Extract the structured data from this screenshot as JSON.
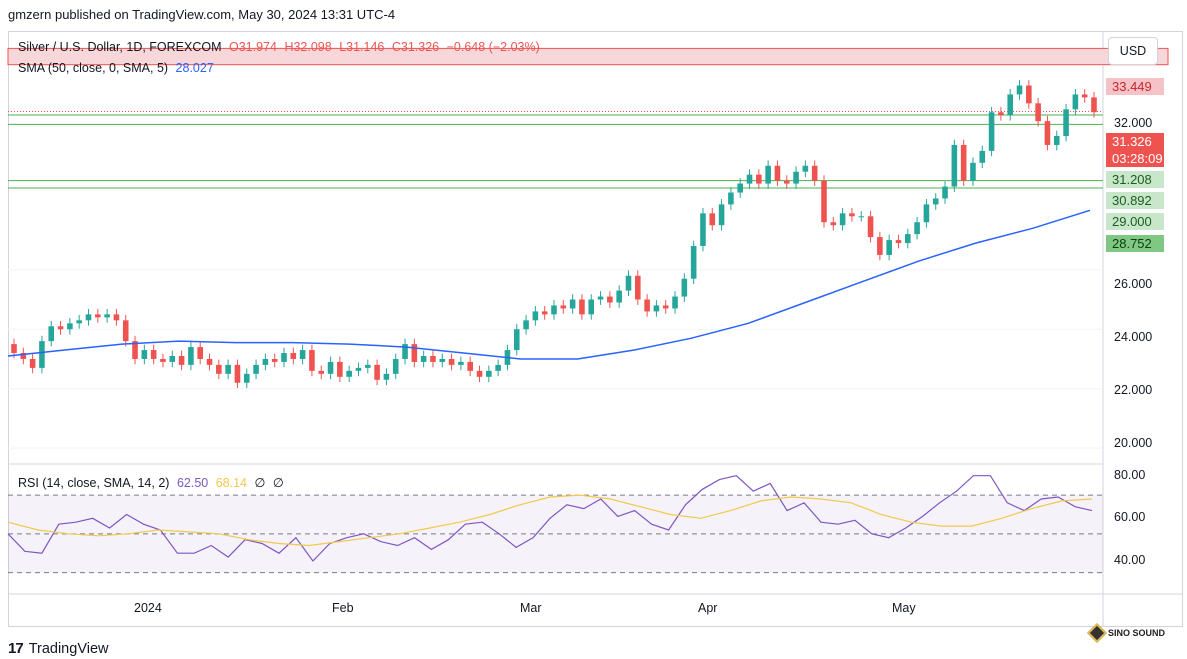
{
  "publisher": "gmzern published on TradingView.com, May 30, 2024 13:31 UTC-4",
  "legend": {
    "symbol": "Silver / U.S. Dollar, 1D, FOREXCOM",
    "open": "O31.974",
    "high": "H32.098",
    "low": "L31.146",
    "close": "C31.326",
    "change": "−0.648 (−2.03%)",
    "sma_label": "SMA (50, close, 0, SMA, 5)",
    "sma_value": "28.027",
    "rsi_label": "RSI (14, close, SMA, 14, 2)",
    "rsi_value": "62.50",
    "rsi_sma_value": "68.14",
    "rsi_extra1": "∅",
    "rsi_extra2": "∅"
  },
  "currency_button": "USD",
  "price_tags": {
    "resistance": "33.449",
    "last_price": "31.326",
    "countdown": "03:28:09",
    "support1": "31.208",
    "support2": "30.892",
    "tick_29": "29.000",
    "support3": "28.752"
  },
  "price_axis_labels": [
    "32.000",
    "26.000",
    "24.000",
    "22.000",
    "20.000"
  ],
  "rsi_axis_labels": [
    "80.00",
    "60.00",
    "40.00"
  ],
  "time_axis_labels": [
    "2024",
    "Feb",
    "Mar",
    "Apr",
    "May"
  ],
  "footer": {
    "logo_text": "TradingView",
    "watermark": "SINO SOUND"
  },
  "colors": {
    "up": "#26a69a",
    "down": "#ef5350",
    "sma": "#2962ff",
    "rsi": "#7e57c2",
    "rsi_sma": "#f2c94c",
    "resistance_zone": "#f8d7da",
    "support_line": "#4caf50"
  },
  "chart_data": {
    "type": "candlestick",
    "symbol": "XAGUSD",
    "timeframe": "1D",
    "ylim": [
      19.5,
      34.0
    ],
    "zones": {
      "resistance": [
        32.9,
        33.449
      ],
      "support_lines": [
        31.208,
        30.892,
        29.0,
        28.752
      ]
    },
    "candles_close": [
      23.2,
      23.0,
      22.7,
      23.6,
      24.1,
      24.0,
      24.2,
      24.3,
      24.5,
      24.4,
      24.5,
      24.3,
      23.6,
      23.0,
      23.3,
      23.0,
      22.9,
      23.1,
      22.8,
      23.4,
      23.0,
      22.8,
      22.5,
      22.8,
      22.2,
      22.5,
      22.8,
      23.0,
      22.9,
      23.2,
      23.0,
      23.3,
      22.6,
      22.5,
      22.9,
      22.4,
      22.6,
      22.7,
      22.8,
      22.3,
      22.5,
      23.0,
      23.5,
      22.9,
      23.1,
      22.9,
      23.0,
      22.8,
      22.9,
      22.6,
      22.4,
      22.6,
      22.8,
      23.3,
      24.0,
      24.3,
      24.6,
      24.5,
      24.8,
      24.7,
      25.0,
      24.5,
      25.0,
      25.1,
      24.9,
      25.3,
      25.8,
      25.0,
      24.6,
      24.8,
      24.7,
      25.1,
      25.7,
      26.8,
      27.9,
      27.5,
      28.2,
      28.6,
      28.9,
      29.2,
      28.9,
      29.5,
      29.0,
      28.9,
      29.3,
      29.5,
      29.0,
      27.6,
      27.5,
      27.9,
      27.8,
      27.8,
      27.1,
      26.5,
      27.0,
      26.9,
      27.2,
      27.6,
      28.2,
      28.4,
      28.8,
      30.2,
      29.0,
      29.6,
      30.0,
      31.3,
      31.2,
      31.9,
      32.2,
      31.6,
      31.0,
      30.2,
      30.5,
      31.4,
      31.9,
      31.8,
      31.3
    ],
    "sma50": [
      23.1,
      23.3,
      23.5,
      23.6,
      23.55,
      23.55,
      23.5,
      23.4,
      23.2,
      23.0,
      23.0,
      23.3,
      23.7,
      24.2,
      24.9,
      25.6,
      26.3,
      26.9,
      27.4,
      28.0
    ],
    "rsi": [
      50,
      41,
      40,
      55,
      56,
      58,
      53,
      60,
      55,
      52,
      40,
      40,
      44,
      38,
      47,
      45,
      40,
      48,
      36,
      45,
      48,
      50,
      46,
      44,
      48,
      42,
      47,
      55,
      56,
      50,
      43,
      48,
      58,
      65,
      63,
      68,
      59,
      62,
      55,
      52,
      65,
      73,
      78,
      80,
      72,
      76,
      62,
      66,
      56,
      55,
      57,
      50,
      48,
      53,
      59,
      66,
      72,
      80,
      80,
      66,
      62,
      68,
      69,
      64,
      62
    ],
    "rsi_sma": [
      56,
      52,
      50,
      49,
      50,
      52,
      51,
      50,
      47,
      45,
      44,
      46,
      48,
      50,
      53,
      56,
      60,
      65,
      69,
      70,
      68,
      64,
      60,
      58,
      62,
      67,
      69,
      68,
      66,
      60,
      56,
      54,
      54,
      58,
      63,
      67,
      68
    ],
    "rsi_levels": [
      70,
      50,
      30
    ]
  }
}
